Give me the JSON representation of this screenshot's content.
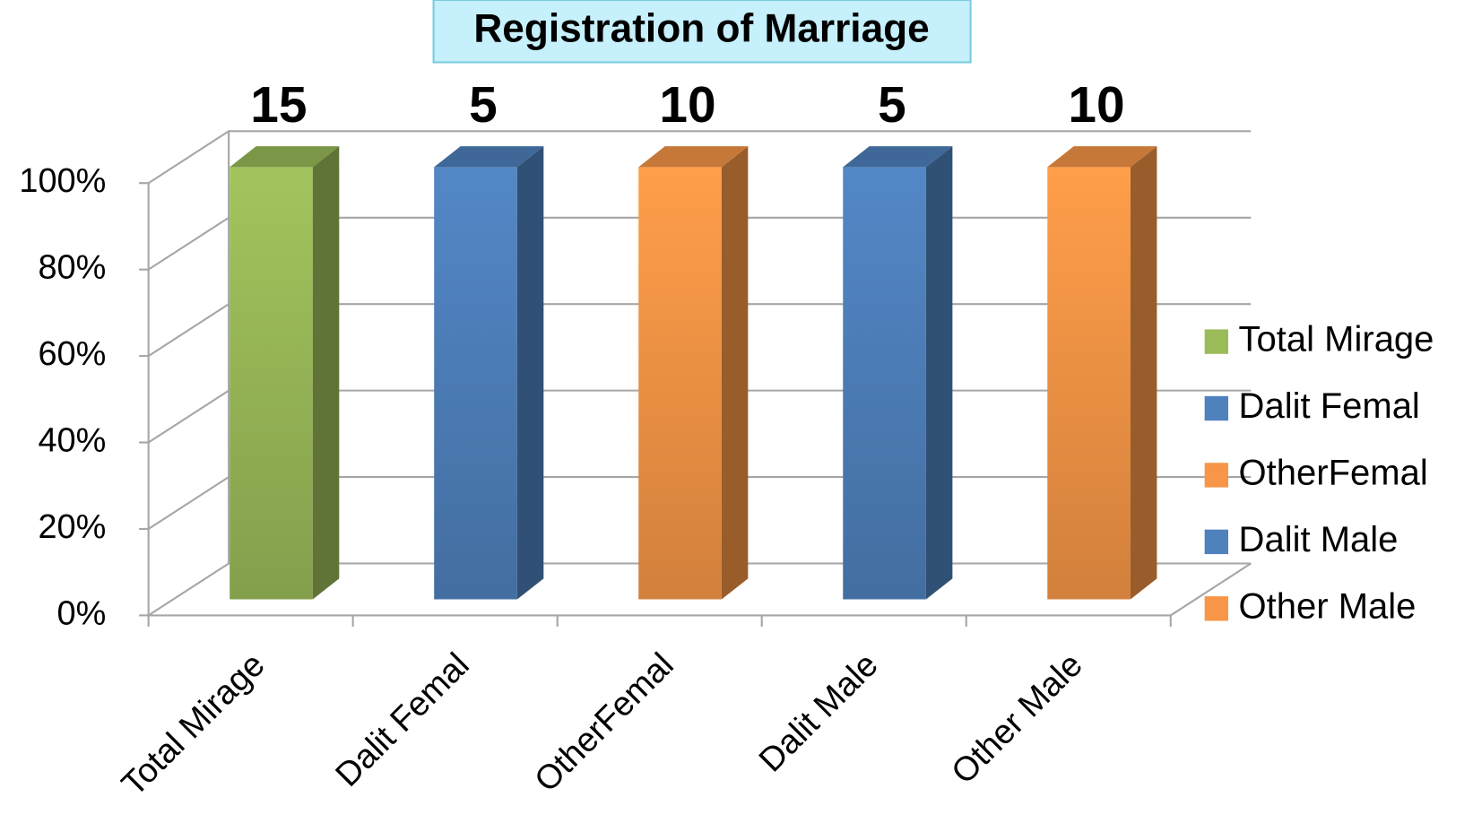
{
  "chart_data": {
    "type": "bar",
    "stacking": "percent",
    "title": "Registration of Marriage",
    "categories": [
      "Total Mirage",
      "Dalit Femal",
      "OtherFemal",
      "Dalit Male",
      "Other Male"
    ],
    "series": [
      {
        "name": "Total Mirage",
        "color": "#9bbb59",
        "values": [
          15,
          null,
          null,
          null,
          null
        ]
      },
      {
        "name": "Dalit Femal",
        "color": "#4f81bd",
        "values": [
          null,
          5,
          null,
          null,
          null
        ]
      },
      {
        "name": "OtherFemal",
        "color": "#f79646",
        "values": [
          null,
          null,
          10,
          null,
          null
        ]
      },
      {
        "name": "Dalit Male",
        "color": "#4f81bd",
        "values": [
          null,
          null,
          null,
          5,
          null
        ]
      },
      {
        "name": "Other Male",
        "color": "#f79646",
        "values": [
          null,
          null,
          null,
          null,
          10
        ]
      }
    ],
    "ylim": [
      0,
      100
    ],
    "yticks": [
      {
        "value": 0,
        "label": "0%"
      },
      {
        "value": 20,
        "label": "20%"
      },
      {
        "value": 40,
        "label": "40%"
      },
      {
        "value": 60,
        "label": "60%"
      },
      {
        "value": 80,
        "label": "80%"
      },
      {
        "value": 100,
        "label": "100%"
      }
    ],
    "grid": true,
    "legend": "right"
  }
}
